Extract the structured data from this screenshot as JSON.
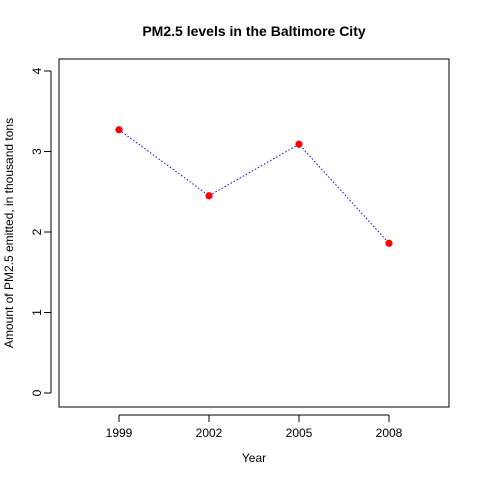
{
  "chart_data": {
    "type": "line",
    "title": "PM2.5 levels in the Baltimore City",
    "xlabel": "Year",
    "ylabel": "Amount of PM2.5 emitted, in thousand tons",
    "categories": [
      "1999",
      "2002",
      "2005",
      "2008"
    ],
    "series": [
      {
        "values": [
          3.27,
          2.45,
          3.09,
          1.86
        ],
        "line_color": "#0000ff",
        "marker_color": "#ff0000",
        "line_style": "dotted"
      }
    ],
    "ylim": [
      0,
      4
    ],
    "yticks": [
      "0",
      "1",
      "2",
      "3",
      "4"
    ],
    "grid": false
  }
}
